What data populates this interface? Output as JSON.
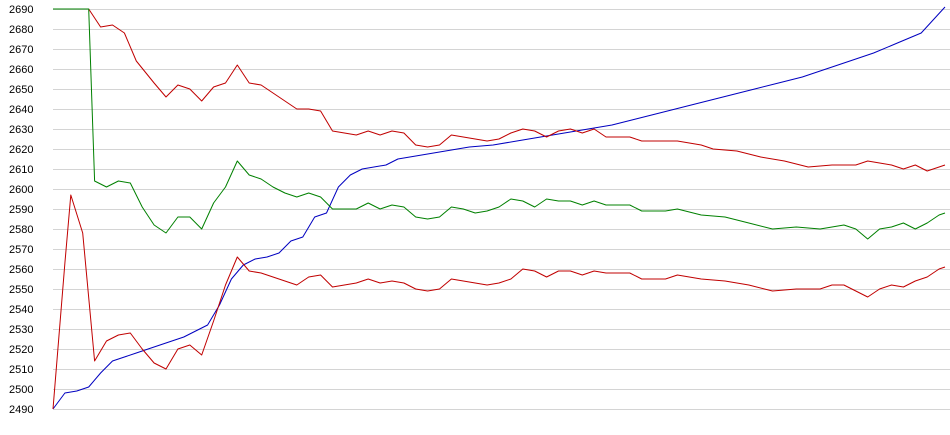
{
  "chart_data": {
    "type": "line",
    "title": "",
    "xlabel": "",
    "ylabel": "",
    "ylim": [
      2490,
      2690
    ],
    "xlim": [
      0,
      150
    ],
    "y_ticks": [
      "2490",
      "2500",
      "2510",
      "2520",
      "2530",
      "2540",
      "2550",
      "2560",
      "2570",
      "2580",
      "2590",
      "2600",
      "2610",
      "2620",
      "2630",
      "2640",
      "2650",
      "2660",
      "2670",
      "2680",
      "2690"
    ],
    "grid": true,
    "legend": "none",
    "series": [
      {
        "color": "#0000c0",
        "points": [
          [
            0,
            2490
          ],
          [
            2,
            2498
          ],
          [
            4,
            2499
          ],
          [
            6,
            2501
          ],
          [
            8,
            2508
          ],
          [
            10,
            2514
          ],
          [
            12,
            2516
          ],
          [
            14,
            2518
          ],
          [
            16,
            2520
          ],
          [
            18,
            2522
          ],
          [
            20,
            2524
          ],
          [
            22,
            2526
          ],
          [
            24,
            2529
          ],
          [
            26,
            2532
          ],
          [
            28,
            2542
          ],
          [
            30,
            2555
          ],
          [
            32,
            2562
          ],
          [
            34,
            2565
          ],
          [
            36,
            2566
          ],
          [
            38,
            2568
          ],
          [
            40,
            2574
          ],
          [
            42,
            2576
          ],
          [
            44,
            2586
          ],
          [
            46,
            2588
          ],
          [
            48,
            2601
          ],
          [
            50,
            2607
          ],
          [
            52,
            2610
          ],
          [
            56,
            2612
          ],
          [
            58,
            2615
          ],
          [
            62,
            2617
          ],
          [
            66,
            2619
          ],
          [
            70,
            2621
          ],
          [
            74,
            2622
          ],
          [
            78,
            2624
          ],
          [
            82,
            2626
          ],
          [
            86,
            2628
          ],
          [
            90,
            2630
          ],
          [
            94,
            2632
          ],
          [
            98,
            2635
          ],
          [
            102,
            2638
          ],
          [
            106,
            2641
          ],
          [
            110,
            2644
          ],
          [
            114,
            2647
          ],
          [
            118,
            2650
          ],
          [
            122,
            2653
          ],
          [
            126,
            2656
          ],
          [
            130,
            2660
          ],
          [
            134,
            2664
          ],
          [
            138,
            2668
          ],
          [
            142,
            2673
          ],
          [
            146,
            2678
          ],
          [
            150,
            2691
          ]
        ]
      },
      {
        "color": "#c00000",
        "points": [
          [
            0,
            2690
          ],
          [
            3,
            2690
          ],
          [
            6,
            2690
          ],
          [
            8,
            2681
          ],
          [
            10,
            2682
          ],
          [
            12,
            2678
          ],
          [
            14,
            2664
          ],
          [
            17,
            2653
          ],
          [
            19,
            2646
          ],
          [
            21,
            2652
          ],
          [
            23,
            2650
          ],
          [
            25,
            2644
          ],
          [
            27,
            2651
          ],
          [
            29,
            2653
          ],
          [
            31,
            2662
          ],
          [
            33,
            2653
          ],
          [
            35,
            2652
          ],
          [
            37,
            2648
          ],
          [
            39,
            2644
          ],
          [
            41,
            2640
          ],
          [
            43,
            2640
          ],
          [
            45,
            2639
          ],
          [
            47,
            2629
          ],
          [
            49,
            2628
          ],
          [
            51,
            2627
          ],
          [
            53,
            2629
          ],
          [
            55,
            2627
          ],
          [
            57,
            2629
          ],
          [
            59,
            2628
          ],
          [
            61,
            2622
          ],
          [
            63,
            2621
          ],
          [
            65,
            2622
          ],
          [
            67,
            2627
          ],
          [
            69,
            2626
          ],
          [
            71,
            2625
          ],
          [
            73,
            2624
          ],
          [
            75,
            2625
          ],
          [
            77,
            2628
          ],
          [
            79,
            2630
          ],
          [
            81,
            2629
          ],
          [
            83,
            2626
          ],
          [
            85,
            2629
          ],
          [
            87,
            2630
          ],
          [
            89,
            2628
          ],
          [
            91,
            2630
          ],
          [
            93,
            2626
          ],
          [
            97,
            2626
          ],
          [
            99,
            2624
          ],
          [
            105,
            2624
          ],
          [
            109,
            2622
          ],
          [
            111,
            2620
          ],
          [
            115,
            2619
          ],
          [
            119,
            2616
          ],
          [
            123,
            2614
          ],
          [
            127,
            2611
          ],
          [
            131,
            2612
          ],
          [
            133,
            2612
          ],
          [
            135,
            2612
          ],
          [
            137,
            2614
          ],
          [
            139,
            2613
          ],
          [
            141,
            2612
          ],
          [
            143,
            2610
          ],
          [
            145,
            2612
          ],
          [
            147,
            2609
          ],
          [
            149,
            2611
          ],
          [
            150,
            2612
          ],
          [
            150,
            2612
          ]
        ]
      },
      {
        "color": "#008000",
        "points": [
          [
            0,
            2690
          ],
          [
            4,
            2690
          ],
          [
            5,
            2690
          ],
          [
            6,
            2690
          ],
          [
            7,
            2604
          ],
          [
            9,
            2601
          ],
          [
            11,
            2604
          ],
          [
            13,
            2603
          ],
          [
            15,
            2591
          ],
          [
            17,
            2582
          ],
          [
            19,
            2578
          ],
          [
            21,
            2586
          ],
          [
            23,
            2586
          ],
          [
            25,
            2580
          ],
          [
            27,
            2593
          ],
          [
            29,
            2601
          ],
          [
            31,
            2614
          ],
          [
            33,
            2607
          ],
          [
            35,
            2605
          ],
          [
            37,
            2601
          ],
          [
            39,
            2598
          ],
          [
            41,
            2596
          ],
          [
            43,
            2598
          ],
          [
            45,
            2596
          ],
          [
            47,
            2590
          ],
          [
            51,
            2590
          ],
          [
            53,
            2593
          ],
          [
            55,
            2590
          ],
          [
            57,
            2592
          ],
          [
            59,
            2591
          ],
          [
            61,
            2586
          ],
          [
            63,
            2585
          ],
          [
            65,
            2586
          ],
          [
            67,
            2591
          ],
          [
            69,
            2590
          ],
          [
            71,
            2588
          ],
          [
            73,
            2589
          ],
          [
            75,
            2591
          ],
          [
            77,
            2595
          ],
          [
            79,
            2594
          ],
          [
            81,
            2591
          ],
          [
            83,
            2595
          ],
          [
            85,
            2594
          ],
          [
            87,
            2594
          ],
          [
            89,
            2592
          ],
          [
            91,
            2594
          ],
          [
            93,
            2592
          ],
          [
            97,
            2592
          ],
          [
            99,
            2589
          ],
          [
            103,
            2589
          ],
          [
            105,
            2590
          ],
          [
            109,
            2587
          ],
          [
            113,
            2586
          ],
          [
            117,
            2583
          ],
          [
            121,
            2580
          ],
          [
            125,
            2581
          ],
          [
            129,
            2580
          ],
          [
            133,
            2582
          ],
          [
            135,
            2580
          ],
          [
            137,
            2575
          ],
          [
            139,
            2580
          ],
          [
            141,
            2581
          ],
          [
            143,
            2583
          ],
          [
            145,
            2580
          ],
          [
            147,
            2583
          ],
          [
            149,
            2587
          ],
          [
            150,
            2588
          ]
        ]
      },
      {
        "color": "#c00000",
        "points": [
          [
            0,
            2490
          ],
          [
            2,
            2563
          ],
          [
            3,
            2597
          ],
          [
            5,
            2578
          ],
          [
            7,
            2514
          ],
          [
            9,
            2524
          ],
          [
            11,
            2527
          ],
          [
            13,
            2528
          ],
          [
            15,
            2520
          ],
          [
            17,
            2513
          ],
          [
            19,
            2510
          ],
          [
            21,
            2520
          ],
          [
            23,
            2522
          ],
          [
            25,
            2517
          ],
          [
            27,
            2534
          ],
          [
            29,
            2552
          ],
          [
            31,
            2566
          ],
          [
            33,
            2559
          ],
          [
            35,
            2558
          ],
          [
            37,
            2556
          ],
          [
            39,
            2554
          ],
          [
            41,
            2552
          ],
          [
            43,
            2556
          ],
          [
            45,
            2557
          ],
          [
            47,
            2551
          ],
          [
            49,
            2552
          ],
          [
            51,
            2553
          ],
          [
            53,
            2555
          ],
          [
            55,
            2553
          ],
          [
            57,
            2554
          ],
          [
            59,
            2553
          ],
          [
            61,
            2550
          ],
          [
            63,
            2549
          ],
          [
            65,
            2550
          ],
          [
            67,
            2555
          ],
          [
            69,
            2554
          ],
          [
            71,
            2553
          ],
          [
            73,
            2552
          ],
          [
            75,
            2553
          ],
          [
            77,
            2555
          ],
          [
            79,
            2560
          ],
          [
            81,
            2559
          ],
          [
            83,
            2556
          ],
          [
            85,
            2559
          ],
          [
            87,
            2559
          ],
          [
            89,
            2557
          ],
          [
            91,
            2559
          ],
          [
            93,
            2558
          ],
          [
            97,
            2558
          ],
          [
            99,
            2555
          ],
          [
            103,
            2555
          ],
          [
            105,
            2557
          ],
          [
            109,
            2555
          ],
          [
            113,
            2554
          ],
          [
            117,
            2552
          ],
          [
            121,
            2549
          ],
          [
            125,
            2550
          ],
          [
            129,
            2550
          ],
          [
            131,
            2552
          ],
          [
            133,
            2552
          ],
          [
            135,
            2549
          ],
          [
            137,
            2546
          ],
          [
            139,
            2550
          ],
          [
            141,
            2552
          ],
          [
            143,
            2551
          ],
          [
            145,
            2554
          ],
          [
            147,
            2556
          ],
          [
            149,
            2560
          ],
          [
            150,
            2561
          ]
        ]
      }
    ]
  }
}
